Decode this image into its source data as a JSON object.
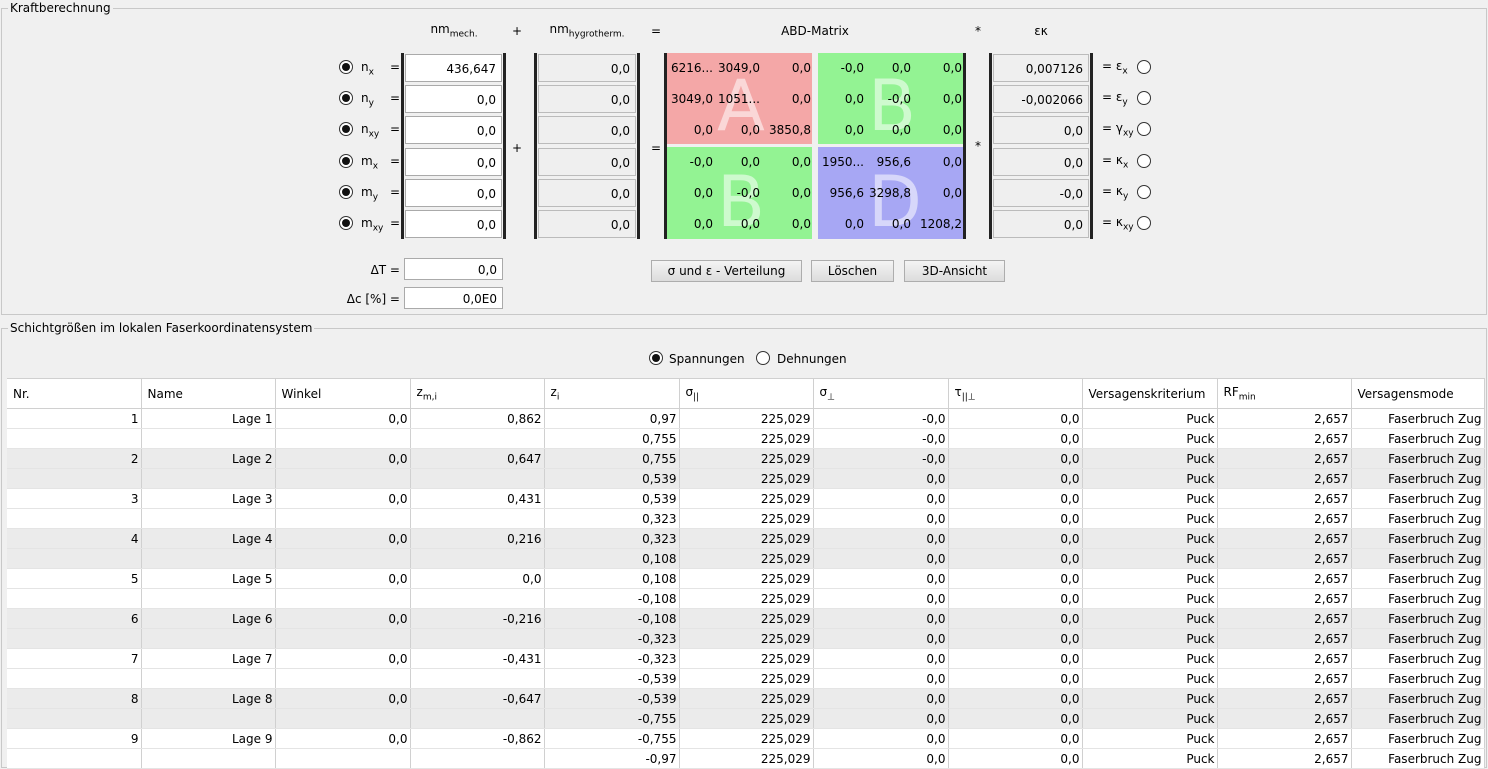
{
  "top": {
    "title": "Kraftberechnung",
    "headers": {
      "nm": "nm",
      "mech": "mech.",
      "plus": "+",
      "nm2": "nm",
      "hygro": "hygrotherm.",
      "equals": "=",
      "abd": "ABD-Matrix",
      "star": "*",
      "ek": "εκ"
    },
    "mid_plus": "+",
    "mid_equals": "=",
    "mid_star": "*",
    "rows": [
      {
        "sym": "n",
        "sub": "x",
        "eq": "=",
        "mech": "436,647",
        "hygro": "0,0",
        "abd": [
          "6216...",
          "3049,0",
          "0,0",
          "-0,0",
          "0,0",
          "0,0"
        ],
        "res": "0,007126",
        "rsym": "= ε",
        "rsub": "x"
      },
      {
        "sym": "n",
        "sub": "y",
        "eq": "=",
        "mech": "0,0",
        "hygro": "0,0",
        "abd": [
          "3049,0",
          "1051...",
          "0,0",
          "0,0",
          "-0,0",
          "0,0"
        ],
        "res": "-0,002066",
        "rsym": "= ε",
        "rsub": "y"
      },
      {
        "sym": "n",
        "sub": "xy",
        "eq": "=",
        "mech": "0,0",
        "hygro": "0,0",
        "abd": [
          "0,0",
          "0,0",
          "3850,8",
          "0,0",
          "0,0",
          "0,0"
        ],
        "res": "0,0",
        "rsym": "= γ",
        "rsub": "xy"
      },
      {
        "sym": "m",
        "sub": "x",
        "eq": "=",
        "mech": "0,0",
        "hygro": "0,0",
        "abd": [
          "-0,0",
          "0,0",
          "0,0",
          "1950...",
          "956,6",
          "0,0"
        ],
        "res": "0,0",
        "rsym": "= κ",
        "rsub": "x"
      },
      {
        "sym": "m",
        "sub": "y",
        "eq": "=",
        "mech": "0,0",
        "hygro": "0,0",
        "abd": [
          "0,0",
          "-0,0",
          "0,0",
          "956,6",
          "3298,8",
          "0,0"
        ],
        "res": "-0,0",
        "rsym": "= κ",
        "rsub": "y"
      },
      {
        "sym": "m",
        "sub": "xy",
        "eq": "=",
        "mech": "0,0",
        "hygro": "0,0",
        "abd": [
          "0,0",
          "0,0",
          "0,0",
          "0,0",
          "0,0",
          "1208,2"
        ],
        "res": "0,0",
        "rsym": "= κ",
        "rsub": "xy"
      }
    ],
    "quad_letters": [
      "A",
      "B",
      "B",
      "D"
    ],
    "colors": {
      "A": "#f4a7a7",
      "B": "#93f393",
      "D": "#a7a7f4"
    },
    "delta_t_label": "ΔT =",
    "delta_t_value": "0,0",
    "delta_c_label": "Δc [%] =",
    "delta_c_value": "0,0E0",
    "buttons": {
      "dist": "σ und ε - Verteilung",
      "delete": "Löschen",
      "view3d": "3D-Ansicht"
    }
  },
  "bottom": {
    "title": "Schichtgrößen im lokalen Faserkoordinatensystem",
    "radio_stress": "Spannungen",
    "radio_strain": "Dehnungen",
    "columns": [
      {
        "t": "Nr.",
        "s": ""
      },
      {
        "t": "Name",
        "s": ""
      },
      {
        "t": "Winkel",
        "s": ""
      },
      {
        "t": "z",
        "s": "m,i"
      },
      {
        "t": "z",
        "s": "i"
      },
      {
        "t": "σ",
        "s": "||"
      },
      {
        "t": "σ",
        "s": "⊥"
      },
      {
        "t": "τ",
        "s": "||⊥"
      },
      {
        "t": "Versagenskriterium",
        "s": ""
      },
      {
        "t": "RF",
        "s": "min"
      },
      {
        "t": "Versagensmode",
        "s": ""
      }
    ],
    "rows": [
      [
        "1",
        "Lage 1",
        "0,0",
        "0,862",
        "0,97",
        "225,029",
        "-0,0",
        "0,0",
        "Puck",
        "2,657",
        "Faserbruch Zug"
      ],
      [
        "",
        "",
        "",
        "",
        "0,755",
        "225,029",
        "-0,0",
        "0,0",
        "Puck",
        "2,657",
        "Faserbruch Zug"
      ],
      [
        "2",
        "Lage 2",
        "0,0",
        "0,647",
        "0,755",
        "225,029",
        "-0,0",
        "0,0",
        "Puck",
        "2,657",
        "Faserbruch Zug"
      ],
      [
        "",
        "",
        "",
        "",
        "0,539",
        "225,029",
        "0,0",
        "0,0",
        "Puck",
        "2,657",
        "Faserbruch Zug"
      ],
      [
        "3",
        "Lage 3",
        "0,0",
        "0,431",
        "0,539",
        "225,029",
        "0,0",
        "0,0",
        "Puck",
        "2,657",
        "Faserbruch Zug"
      ],
      [
        "",
        "",
        "",
        "",
        "0,323",
        "225,029",
        "0,0",
        "0,0",
        "Puck",
        "2,657",
        "Faserbruch Zug"
      ],
      [
        "4",
        "Lage 4",
        "0,0",
        "0,216",
        "0,323",
        "225,029",
        "0,0",
        "0,0",
        "Puck",
        "2,657",
        "Faserbruch Zug"
      ],
      [
        "",
        "",
        "",
        "",
        "0,108",
        "225,029",
        "0,0",
        "0,0",
        "Puck",
        "2,657",
        "Faserbruch Zug"
      ],
      [
        "5",
        "Lage 5",
        "0,0",
        "0,0",
        "0,108",
        "225,029",
        "0,0",
        "0,0",
        "Puck",
        "2,657",
        "Faserbruch Zug"
      ],
      [
        "",
        "",
        "",
        "",
        "-0,108",
        "225,029",
        "0,0",
        "0,0",
        "Puck",
        "2,657",
        "Faserbruch Zug"
      ],
      [
        "6",
        "Lage 6",
        "0,0",
        "-0,216",
        "-0,108",
        "225,029",
        "0,0",
        "0,0",
        "Puck",
        "2,657",
        "Faserbruch Zug"
      ],
      [
        "",
        "",
        "",
        "",
        "-0,323",
        "225,029",
        "0,0",
        "0,0",
        "Puck",
        "2,657",
        "Faserbruch Zug"
      ],
      [
        "7",
        "Lage 7",
        "0,0",
        "-0,431",
        "-0,323",
        "225,029",
        "0,0",
        "0,0",
        "Puck",
        "2,657",
        "Faserbruch Zug"
      ],
      [
        "",
        "",
        "",
        "",
        "-0,539",
        "225,029",
        "0,0",
        "0,0",
        "Puck",
        "2,657",
        "Faserbruch Zug"
      ],
      [
        "8",
        "Lage 8",
        "0,0",
        "-0,647",
        "-0,539",
        "225,029",
        "0,0",
        "0,0",
        "Puck",
        "2,657",
        "Faserbruch Zug"
      ],
      [
        "",
        "",
        "",
        "",
        "-0,755",
        "225,029",
        "0,0",
        "0,0",
        "Puck",
        "2,657",
        "Faserbruch Zug"
      ],
      [
        "9",
        "Lage 9",
        "0,0",
        "-0,862",
        "-0,755",
        "225,029",
        "0,0",
        "0,0",
        "Puck",
        "2,657",
        "Faserbruch Zug"
      ],
      [
        "",
        "",
        "",
        "",
        "-0,97",
        "225,029",
        "0,0",
        "0,0",
        "Puck",
        "2,657",
        "Faserbruch Zug"
      ]
    ]
  }
}
